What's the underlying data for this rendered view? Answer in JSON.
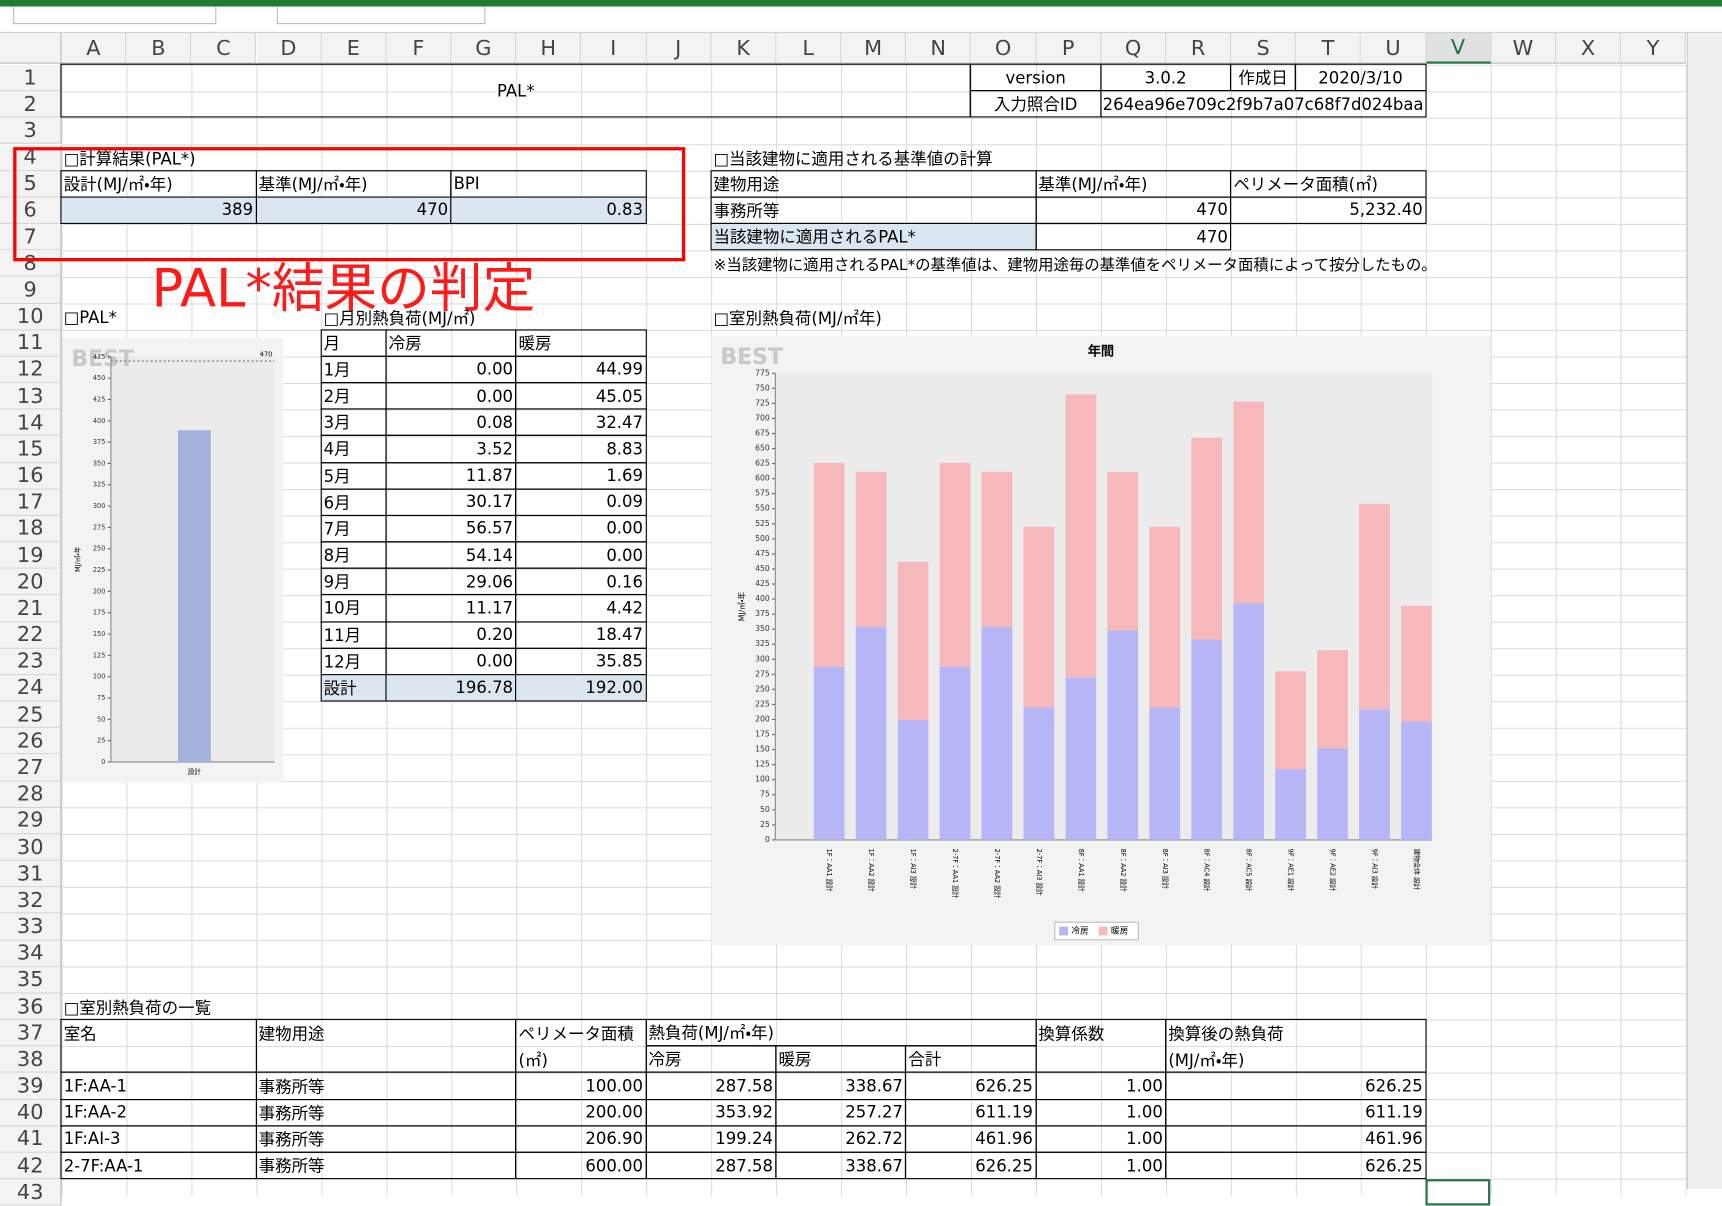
{
  "column_headers": [
    "A",
    "B",
    "C",
    "D",
    "E",
    "F",
    "G",
    "H",
    "I",
    "J",
    "K",
    "L",
    "M",
    "N",
    "O",
    "P",
    "Q",
    "R",
    "S",
    "T",
    "U",
    "V",
    "W",
    "X",
    "Y"
  ],
  "row_numbers": [
    "1",
    "2",
    "3",
    "4",
    "5",
    "6",
    "7",
    "8",
    "9",
    "10",
    "11",
    "12",
    "13",
    "14",
    "15",
    "16",
    "17",
    "18",
    "19",
    "20",
    "21",
    "22",
    "23",
    "24",
    "25",
    "26",
    "27",
    "28",
    "29",
    "30",
    "31",
    "32",
    "33",
    "34",
    "35",
    "36",
    "37",
    "38",
    "39",
    "40",
    "41",
    "42",
    "43"
  ],
  "header": {
    "title": "PAL*",
    "version_label": "version",
    "version": "3.0.2",
    "created_label": "作成日",
    "created": "2020/3/10",
    "id_label": "入力照合ID",
    "id": "264ea96e709c2f9b7a07c68f7d024baa"
  },
  "result": {
    "title": "□計算結果(PAL*)",
    "columns": [
      "設計(MJ/㎡・年)",
      "基準(MJ/㎡・年)",
      "BPI"
    ],
    "values": [
      "389",
      "470",
      "0.83"
    ]
  },
  "annotation": "PAL*結果の判定",
  "standard": {
    "title": "□当該建物に適用される基準値の計算",
    "columns": [
      "建物用途",
      "基準(MJ/㎡・年)",
      "ペリメータ面積(㎡)"
    ],
    "rows": [
      [
        "事務所等",
        "470",
        "5,232.40"
      ]
    ],
    "applied_label": "当該建物に適用されるPAL*",
    "applied_value": "470",
    "note": "※当該建物に適用されるPAL*の基準値は、建物用途毎の基準値をペリメータ面積によって按分したもの。"
  },
  "monthly": {
    "title": "□月別熱負荷(MJ/㎡)",
    "columns": [
      "月",
      "冷房",
      "暖房"
    ],
    "rows": [
      [
        "1月",
        "0.00",
        "44.99"
      ],
      [
        "2月",
        "0.00",
        "45.05"
      ],
      [
        "3月",
        "0.08",
        "32.47"
      ],
      [
        "4月",
        "3.52",
        "8.83"
      ],
      [
        "5月",
        "11.87",
        "1.69"
      ],
      [
        "6月",
        "30.17",
        "0.09"
      ],
      [
        "7月",
        "56.57",
        "0.00"
      ],
      [
        "8月",
        "54.14",
        "0.00"
      ],
      [
        "9月",
        "29.06",
        "0.16"
      ],
      [
        "10月",
        "11.17",
        "4.42"
      ],
      [
        "11月",
        "0.20",
        "18.47"
      ],
      [
        "12月",
        "0.00",
        "35.85"
      ]
    ],
    "total": [
      "設計",
      "196.78",
      "192.00"
    ]
  },
  "room_list": {
    "title": "□室別熱負荷の一覧",
    "headers": {
      "name": "室名",
      "use": "建物用途",
      "area": [
        "ペリメータ面積",
        "(㎡)"
      ],
      "load": "熱負荷(MJ/㎡・年)",
      "load_parts": [
        "冷房",
        "暖房",
        "合計"
      ],
      "factor": "換算係数",
      "converted": [
        "換算後の熱負荷",
        "(MJ/㎡・年)"
      ]
    },
    "rows": [
      [
        "1F:AA-1",
        "事務所等",
        "100.00",
        "287.58",
        "338.67",
        "626.25",
        "1.00",
        "626.25"
      ],
      [
        "1F:AA-2",
        "事務所等",
        "200.00",
        "353.92",
        "257.27",
        "611.19",
        "1.00",
        "611.19"
      ],
      [
        "1F:AI-3",
        "事務所等",
        "206.90",
        "199.24",
        "262.72",
        "461.96",
        "1.00",
        "461.96"
      ],
      [
        "2-7F:AA-1",
        "事務所等",
        "600.00",
        "287.58",
        "338.67",
        "626.25",
        "1.00",
        "626.25"
      ]
    ]
  },
  "chart_data": [
    {
      "type": "bar",
      "section": "□PAL*",
      "watermark": "BEST",
      "ylabel": "MJ/㎡・年",
      "categories": [
        "設計"
      ],
      "values": [
        389
      ],
      "color": "#a3b1dd",
      "reference_line": 470,
      "ylim": [
        0,
        475
      ],
      "yticks": [
        0,
        25,
        50,
        75,
        100,
        125,
        150,
        175,
        200,
        225,
        250,
        275,
        300,
        325,
        350,
        375,
        400,
        425,
        450,
        475
      ]
    },
    {
      "type": "stacked_bar",
      "section": "□室別熱負荷(MJ/㎡年)",
      "watermark": "BEST",
      "title": "年間",
      "ylabel": "MJ/㎡・年",
      "categories": [
        "1F：AA1 設計",
        "1F：AA2 設計",
        "1F：AI3 設計",
        "2-7F：AA1 設計",
        "2-7F：AA2 設計",
        "2-7F：AI3 設計",
        "8F：AA1 設計",
        "8F：AA2 設計",
        "8F：AI3 設計",
        "8F：AC4 設計",
        "8F：AC5 設計",
        "9F：AE1 設計",
        "9F：AE2 設計",
        "9F：AI3 設計",
        "建物全体 設計"
      ],
      "series": [
        {
          "name": "冷房",
          "color": "#b6b6f6",
          "values": [
            287.58,
            353.92,
            199.24,
            287.58,
            353.92,
            220,
            270,
            348,
            220,
            333,
            393,
            118,
            152,
            217,
            196.78
          ]
        },
        {
          "name": "暖房",
          "color": "#f6b8ba",
          "values": [
            338.67,
            257.27,
            262.72,
            338.67,
            257.27,
            300,
            470,
            263,
            300,
            335,
            335,
            162,
            163,
            341,
            192.0
          ]
        }
      ],
      "legend": "bottom",
      "ylim": [
        0,
        775
      ],
      "yticks": [
        0,
        25,
        50,
        75,
        100,
        125,
        150,
        175,
        200,
        225,
        250,
        275,
        300,
        325,
        350,
        375,
        400,
        425,
        450,
        475,
        500,
        525,
        550,
        575,
        600,
        625,
        650,
        675,
        700,
        725,
        750,
        775
      ]
    }
  ]
}
